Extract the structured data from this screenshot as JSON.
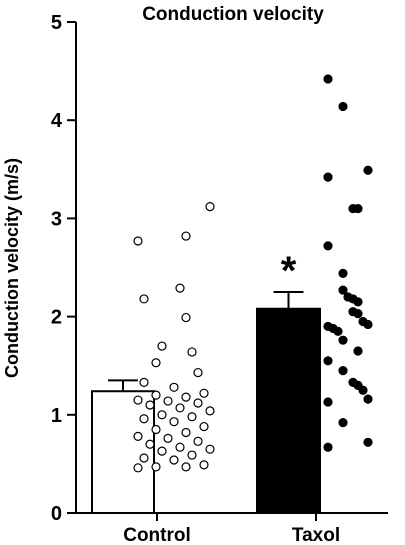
{
  "chart_data": {
    "type": "bar",
    "title": "Conduction velocity",
    "ylabel": "Conduction velocity (m/s)",
    "xlabel": "",
    "ylim": [
      0,
      5
    ],
    "yticks": [
      "0",
      "1",
      "2",
      "3",
      "4",
      "5"
    ],
    "grid": false,
    "categories": [
      "Control",
      "Taxol"
    ],
    "bars": [
      {
        "category": "Control",
        "value": 1.24,
        "error": 0.11,
        "fill": "#ffffff",
        "significance": ""
      },
      {
        "category": "Taxol",
        "value": 2.08,
        "error": 0.17,
        "fill": "#000000",
        "significance": "*"
      }
    ],
    "scatter": [
      {
        "category": "Control",
        "marker": "open-circle",
        "values": [
          3.12,
          2.82,
          2.77,
          2.29,
          2.18,
          1.99,
          1.7,
          1.64,
          1.53,
          1.43,
          1.33,
          1.28,
          1.22,
          1.2,
          1.18,
          1.15,
          1.14,
          1.12,
          1.1,
          1.07,
          1.04,
          1.0,
          0.98,
          0.96,
          0.93,
          0.88,
          0.85,
          0.82,
          0.78,
          0.76,
          0.73,
          0.7,
          0.67,
          0.65,
          0.63,
          0.59,
          0.56,
          0.54,
          0.49,
          0.47,
          0.47,
          0.46
        ]
      },
      {
        "category": "Taxol",
        "marker": "filled-circle",
        "values": [
          4.42,
          4.14,
          3.49,
          3.42,
          3.1,
          3.1,
          2.72,
          2.44,
          2.27,
          2.2,
          2.18,
          2.15,
          2.05,
          2.03,
          1.95,
          1.92,
          1.9,
          1.88,
          1.85,
          1.76,
          1.65,
          1.55,
          1.45,
          1.33,
          1.3,
          1.25,
          1.16,
          1.13,
          0.92,
          0.72,
          0.67
        ]
      }
    ]
  }
}
